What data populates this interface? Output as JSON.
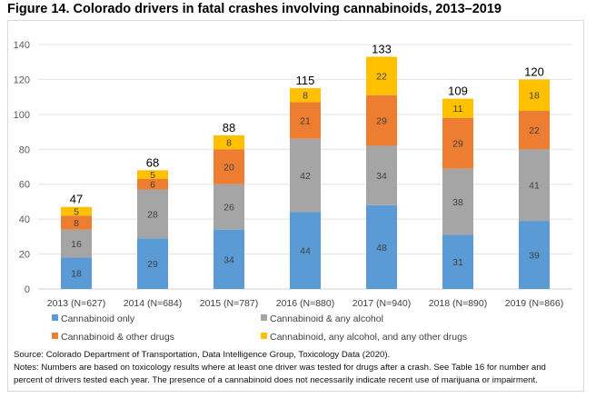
{
  "title": "Figure 14. Colorado drivers in fatal crashes involving cannabinoids, 2013–2019",
  "chart_data": {
    "type": "bar",
    "stacked": true,
    "title": "Figure 14. Colorado drivers in fatal crashes involving cannabinoids, 2013–2019",
    "xlabel": "",
    "ylabel": "",
    "ylim": [
      0,
      140
    ],
    "yticks": [
      0,
      20,
      40,
      60,
      80,
      100,
      120,
      140
    ],
    "grid": true,
    "legend_position": "bottom",
    "categories": [
      "2013 (N=627)",
      "2014 (N=684)",
      "2015 (N=787)",
      "2016 (N=880)",
      "2017 (N=940)",
      "2018 (N=890)",
      "2019 (N=866)"
    ],
    "series": [
      {
        "name": "Cannabinoid only",
        "color": "#5b9bd5",
        "values": [
          18,
          29,
          34,
          44,
          48,
          31,
          39
        ]
      },
      {
        "name": "Cannabinoid & any alcohol",
        "color": "#a5a5a5",
        "values": [
          16,
          28,
          26,
          42,
          34,
          38,
          41
        ]
      },
      {
        "name": "Cannabinoid & other drugs",
        "color": "#ed7d31",
        "values": [
          8,
          6,
          20,
          21,
          29,
          29,
          22
        ]
      },
      {
        "name": "Cannabinoid, any alcohol, and any other drugs",
        "color": "#ffc000",
        "values": [
          5,
          5,
          8,
          8,
          22,
          11,
          18
        ]
      }
    ],
    "totals": [
      47,
      68,
      88,
      115,
      133,
      109,
      120
    ]
  },
  "notes": {
    "source": "Source: Colorado Department of Transportation, Data Intelligence Group, Toxicology Data (2020).",
    "line1": "Notes: Numbers are based on toxicology results where at least one driver was tested for drugs after a crash. See Table 16 for number and",
    "line2": "percent of drivers tested each year. The presence of a cannabinoid does not necessarily indicate recent use of marijuana or impairment."
  }
}
